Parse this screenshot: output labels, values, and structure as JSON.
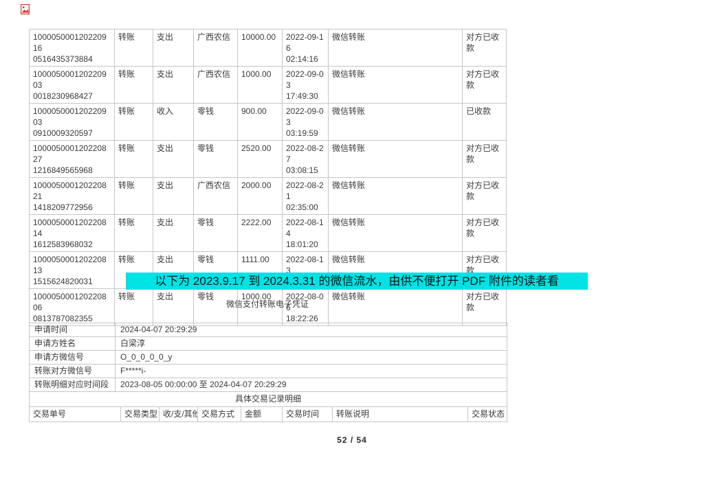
{
  "page": {
    "subtitle": "微信支付转账电子凭证",
    "highlight_note": "以下为 2023.9.17 到 2024.3.31 的微信流水，由供不便打开 PDF 附件的读者看",
    "highlight_color": "#00e2e4",
    "page_indicator": "52 / 54"
  },
  "top_table": {
    "rows": [
      [
        "100005000120220916\n0516435373884",
        "转账",
        "支出",
        "广西农信",
        "10000.00",
        "2022-09-16\n02:14:16",
        "微信转账",
        "对方已收款"
      ],
      [
        "100005000120220903\n0018230968427",
        "转账",
        "支出",
        "广西农信",
        "1000.00",
        "2022-09-03\n17:49:30",
        "微信转账",
        "对方已收款"
      ],
      [
        "100005000120220903\n0910009320597",
        "转账",
        "收入",
        "零钱",
        "900.00",
        "2022-09-03\n03:19:59",
        "微信转账",
        "已收款"
      ],
      [
        "100005000120220827\n1216849565968",
        "转账",
        "支出",
        "零钱",
        "2520.00",
        "2022-08-27\n03:08:15",
        "微信转账",
        "对方已收款"
      ],
      [
        "100005000120220821\n1418209772956",
        "转账",
        "支出",
        "广西农信",
        "2000.00",
        "2022-08-21\n02:35:00",
        "微信转账",
        "对方已收款"
      ],
      [
        "100005000120220814\n1612583968032",
        "转账",
        "支出",
        "零钱",
        "2222.00",
        "2022-08-14\n18:01:20",
        "微信转账",
        "对方已收款"
      ],
      [
        "100005000120220813\n1515624820031",
        "转账",
        "支出",
        "零钱",
        "1111.00",
        "2022-08-13\n02:07:51",
        "微信转账",
        "对方已收款"
      ],
      [
        "100005000120220806\n0813787082355",
        "转账",
        "支出",
        "零钱",
        "1000.00",
        "2022-08-06\n18:22:26",
        "微信转账",
        "对方已收款"
      ]
    ]
  },
  "voucher": {
    "info_rows": [
      [
        "申请时间",
        "2024-04-07 20:29:29"
      ],
      [
        "申请方姓名",
        "白梁淳"
      ],
      [
        "申请方微信号",
        "O_0_0_0_0_y"
      ],
      [
        "转账对方微信号",
        "F*****i-"
      ],
      [
        "转账明细对应时间段",
        "2023-08-05 00:00:00  至  2024-04-07 20:29:29"
      ]
    ],
    "section_title": "具体交易记录明细",
    "header_rows": [
      [
        "交易单号",
        "交易类型",
        "收/支/其他",
        "交易方式",
        "金额",
        "交易时间",
        "转账说明",
        "交易状态"
      ]
    ]
  }
}
